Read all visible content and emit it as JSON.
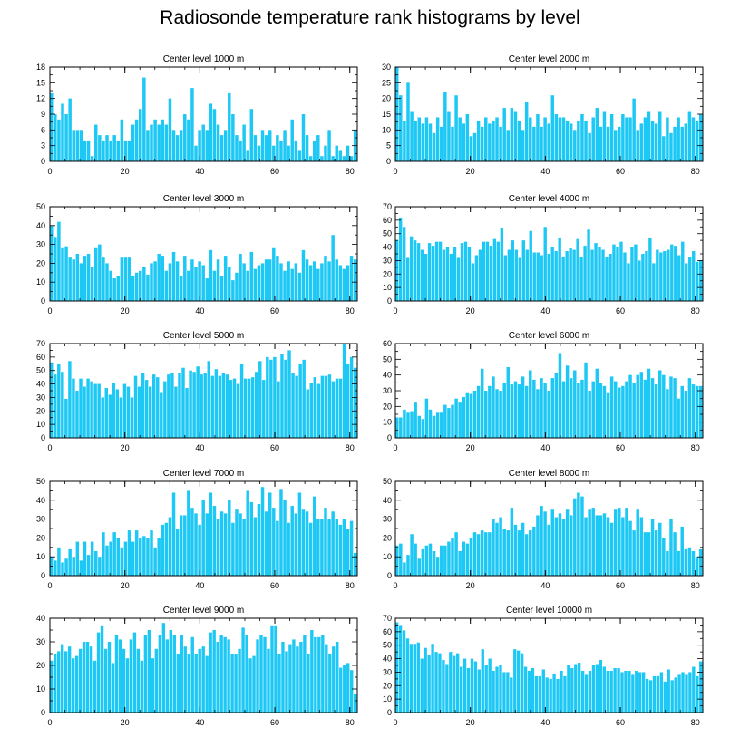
{
  "title": "Radiosonde temperature rank histograms by level",
  "colors": {
    "bar": "#1ec8f5",
    "bar_edge": "#ffffff",
    "axis": "#000000"
  },
  "chart_data": [
    {
      "type": "bar",
      "title": "Center level 1000 m",
      "xlim": [
        0,
        82
      ],
      "ylim": [
        0,
        18
      ],
      "xticks": [
        0,
        20,
        40,
        60,
        80
      ],
      "yticks": [
        0,
        3,
        6,
        9,
        12,
        15,
        18
      ],
      "ytick_side": "left",
      "values": [
        13,
        9,
        8,
        11,
        9,
        12,
        6,
        6,
        6,
        4,
        4,
        1,
        7,
        5,
        4,
        5,
        4,
        5,
        4,
        8,
        4,
        4,
        7,
        8,
        10,
        16,
        6,
        7,
        8,
        7,
        8,
        7,
        12,
        6,
        5,
        6,
        9,
        8,
        14,
        3,
        6,
        7,
        6,
        11,
        10,
        7,
        5,
        6,
        13,
        9,
        5,
        4,
        7,
        2,
        10,
        5,
        3,
        6,
        5,
        6,
        3,
        5,
        4,
        6,
        3,
        8,
        4,
        2,
        9,
        5,
        1,
        4,
        5,
        1,
        3,
        6,
        1,
        3,
        2,
        1,
        3,
        1,
        6
      ]
    },
    {
      "type": "bar",
      "title": "Center level 2000 m",
      "xlim": [
        0,
        82
      ],
      "ylim": [
        0,
        30
      ],
      "xticks": [
        0,
        20,
        40,
        60,
        80
      ],
      "yticks": [
        0,
        5,
        10,
        15,
        20,
        25,
        30
      ],
      "ytick_side": "left",
      "values": [
        30,
        21,
        13,
        25,
        16,
        13,
        14,
        12,
        14,
        12,
        9,
        14,
        11,
        22,
        16,
        11,
        21,
        14,
        12,
        15,
        8,
        9,
        13,
        11,
        14,
        12,
        13,
        14,
        11,
        17,
        10,
        17,
        16,
        13,
        10,
        19,
        14,
        11,
        15,
        11,
        14,
        12,
        21,
        15,
        14,
        14,
        13,
        12,
        10,
        13,
        15,
        13,
        9,
        14,
        17,
        11,
        16,
        11,
        15,
        10,
        11,
        15,
        14,
        14,
        20,
        10,
        12,
        14,
        16,
        13,
        12,
        16,
        8,
        14,
        9,
        11,
        14,
        11,
        12,
        16,
        14,
        13,
        15
      ]
    },
    {
      "type": "bar",
      "title": "Center level 3000 m",
      "xlim": [
        0,
        82
      ],
      "ylim": [
        0,
        50
      ],
      "xticks": [
        0,
        20,
        40,
        60,
        80
      ],
      "yticks": [
        0,
        10,
        20,
        30,
        40,
        50
      ],
      "ytick_side": "left",
      "values": [
        40,
        34,
        42,
        28,
        29,
        23,
        22,
        25,
        20,
        24,
        25,
        18,
        28,
        30,
        23,
        20,
        16,
        12,
        13,
        23,
        23,
        23,
        13,
        15,
        16,
        18,
        14,
        20,
        21,
        25,
        24,
        16,
        20,
        26,
        21,
        13,
        24,
        16,
        22,
        18,
        21,
        19,
        12,
        27,
        16,
        22,
        13,
        24,
        18,
        11,
        15,
        25,
        20,
        16,
        26,
        17,
        19,
        20,
        22,
        22,
        28,
        24,
        20,
        16,
        21,
        17,
        20,
        15,
        27,
        22,
        19,
        21,
        17,
        20,
        24,
        21,
        35,
        22,
        19,
        17,
        19,
        24,
        22
      ]
    },
    {
      "type": "bar",
      "title": "Center level 4000 m",
      "xlim": [
        0,
        82
      ],
      "ylim": [
        0,
        70
      ],
      "xticks": [
        0,
        20,
        40,
        60,
        80
      ],
      "yticks": [
        0,
        10,
        20,
        30,
        40,
        50,
        60,
        70
      ],
      "ytick_side": "right",
      "values": [
        45,
        62,
        55,
        32,
        48,
        45,
        43,
        38,
        35,
        43,
        41,
        44,
        44,
        38,
        40,
        35,
        40,
        32,
        43,
        44,
        40,
        28,
        34,
        38,
        44,
        44,
        41,
        46,
        44,
        54,
        34,
        38,
        45,
        38,
        32,
        45,
        38,
        52,
        36,
        36,
        34,
        55,
        35,
        40,
        37,
        47,
        33,
        37,
        39,
        38,
        46,
        33,
        41,
        53,
        38,
        43,
        40,
        38,
        33,
        35,
        42,
        40,
        44,
        36,
        28,
        40,
        42,
        30,
        35,
        37,
        47,
        28,
        38,
        36,
        37,
        38,
        42,
        41,
        34,
        44,
        28,
        33,
        37,
        29,
        30
      ]
    },
    {
      "type": "bar",
      "title": "Center level 5000 m",
      "xlim": [
        0,
        82
      ],
      "ylim": [
        0,
        70
      ],
      "xticks": [
        0,
        20,
        40,
        60,
        80
      ],
      "yticks": [
        0,
        10,
        20,
        30,
        40,
        50,
        60,
        70
      ],
      "ytick_side": "left",
      "values": [
        56,
        47,
        55,
        49,
        29,
        57,
        44,
        35,
        44,
        38,
        44,
        42,
        40,
        40,
        30,
        37,
        32,
        41,
        36,
        30,
        40,
        38,
        30,
        46,
        38,
        48,
        43,
        38,
        47,
        45,
        34,
        42,
        47,
        48,
        38,
        48,
        52,
        37,
        50,
        49,
        53,
        47,
        48,
        57,
        46,
        51,
        46,
        48,
        47,
        43,
        44,
        40,
        55,
        44,
        44,
        45,
        49,
        57,
        43,
        60,
        58,
        60,
        42,
        62,
        58,
        65,
        48,
        46,
        55,
        58,
        36,
        41,
        45,
        40,
        46,
        46,
        47,
        42,
        44,
        44,
        70,
        55,
        60,
        52
      ]
    },
    {
      "type": "bar",
      "title": "Center level 6000 m",
      "xlim": [
        0,
        82
      ],
      "ylim": [
        0,
        60
      ],
      "xticks": [
        0,
        20,
        40,
        60,
        80
      ],
      "yticks": [
        0,
        10,
        20,
        30,
        40,
        50,
        60
      ],
      "ytick_side": "right",
      "values": [
        13,
        13,
        18,
        16,
        17,
        23,
        14,
        12,
        25,
        18,
        14,
        16,
        16,
        21,
        19,
        21,
        25,
        23,
        26,
        29,
        28,
        30,
        33,
        44,
        30,
        33,
        39,
        31,
        30,
        35,
        45,
        34,
        36,
        34,
        39,
        33,
        43,
        37,
        31,
        38,
        35,
        30,
        38,
        41,
        54,
        36,
        46,
        38,
        43,
        35,
        37,
        48,
        30,
        36,
        44,
        35,
        33,
        29,
        39,
        36,
        32,
        33,
        36,
        40,
        35,
        40,
        42,
        37,
        44,
        38,
        34,
        43,
        40,
        31,
        39,
        38,
        25,
        33,
        30,
        38,
        34,
        33,
        33
      ]
    },
    {
      "type": "bar",
      "title": "Center level 7000 m",
      "xlim": [
        0,
        82
      ],
      "ylim": [
        0,
        50
      ],
      "xticks": [
        0,
        20,
        40,
        60,
        80
      ],
      "yticks": [
        0,
        10,
        20,
        30,
        40,
        50
      ],
      "ytick_side": "left",
      "values": [
        10,
        8,
        15,
        7,
        9,
        14,
        10,
        18,
        8,
        18,
        11,
        18,
        13,
        10,
        23,
        16,
        18,
        23,
        20,
        15,
        18,
        24,
        18,
        24,
        20,
        21,
        20,
        24,
        15,
        20,
        27,
        28,
        31,
        44,
        25,
        32,
        32,
        45,
        36,
        33,
        27,
        40,
        33,
        44,
        37,
        30,
        34,
        33,
        40,
        28,
        35,
        33,
        30,
        45,
        39,
        31,
        38,
        47,
        34,
        44,
        36,
        29,
        46,
        40,
        28,
        37,
        33,
        44,
        35,
        34,
        28,
        42,
        30,
        30,
        36,
        30,
        34,
        30,
        27,
        30,
        25,
        29,
        12
      ]
    },
    {
      "type": "bar",
      "title": "Center level 8000 m",
      "xlim": [
        0,
        82
      ],
      "ylim": [
        0,
        50
      ],
      "xticks": [
        0,
        20,
        40,
        60,
        80
      ],
      "yticks": [
        0,
        10,
        20,
        30,
        40,
        50
      ],
      "ytick_side": "right",
      "values": [
        16,
        17,
        7,
        11,
        22,
        17,
        9,
        14,
        16,
        17,
        13,
        10,
        16,
        16,
        18,
        20,
        23,
        13,
        18,
        17,
        20,
        23,
        22,
        24,
        23,
        23,
        30,
        28,
        31,
        25,
        24,
        36,
        27,
        24,
        28,
        22,
        24,
        26,
        32,
        37,
        34,
        27,
        35,
        31,
        33,
        30,
        35,
        32,
        41,
        44,
        42,
        31,
        35,
        36,
        32,
        32,
        33,
        31,
        28,
        35,
        36,
        31,
        36,
        29,
        24,
        35,
        31,
        23,
        23,
        30,
        24,
        28,
        20,
        13,
        30,
        23,
        13,
        26,
        14,
        15,
        13,
        10,
        14
      ]
    },
    {
      "type": "bar",
      "title": "Center level 9000 m",
      "xlim": [
        0,
        82
      ],
      "ylim": [
        0,
        40
      ],
      "xticks": [
        0,
        20,
        40,
        60,
        80
      ],
      "yticks": [
        0,
        10,
        20,
        30,
        40
      ],
      "ytick_side": "left",
      "values": [
        22,
        25,
        26,
        29,
        26,
        28,
        23,
        24,
        27,
        30,
        30,
        28,
        22,
        34,
        37,
        27,
        30,
        21,
        33,
        31,
        27,
        23,
        31,
        34,
        27,
        22,
        33,
        35,
        23,
        27,
        33,
        38,
        31,
        35,
        33,
        25,
        33,
        28,
        25,
        32,
        25,
        27,
        28,
        24,
        34,
        35,
        30,
        33,
        32,
        31,
        25,
        25,
        27,
        36,
        33,
        23,
        24,
        31,
        33,
        32,
        27,
        37,
        37,
        25,
        30,
        26,
        29,
        31,
        28,
        30,
        33,
        25,
        35,
        32,
        32,
        33,
        29,
        25,
        28,
        30,
        19,
        20,
        21,
        18,
        8
      ]
    },
    {
      "type": "bar",
      "title": "Center level 10000 m",
      "xlim": [
        0,
        82
      ],
      "ylim": [
        0,
        70
      ],
      "xticks": [
        0,
        20,
        40,
        60,
        80
      ],
      "yticks": [
        0,
        10,
        20,
        30,
        40,
        50,
        60,
        70
      ],
      "ytick_side": "right",
      "values": [
        67,
        65,
        61,
        55,
        51,
        51,
        52,
        40,
        48,
        43,
        51,
        45,
        44,
        39,
        36,
        45,
        42,
        44,
        34,
        40,
        33,
        40,
        38,
        32,
        47,
        35,
        40,
        31,
        34,
        35,
        30,
        30,
        26,
        47,
        46,
        44,
        34,
        31,
        33,
        27,
        27,
        32,
        26,
        25,
        29,
        25,
        31,
        27,
        35,
        33,
        36,
        37,
        31,
        28,
        31,
        35,
        36,
        39,
        34,
        31,
        31,
        33,
        33,
        30,
        31,
        31,
        28,
        31,
        30,
        30,
        25,
        24,
        27,
        27,
        30,
        23,
        32,
        24,
        26,
        28,
        30,
        28,
        30,
        34,
        27,
        38
      ]
    }
  ]
}
